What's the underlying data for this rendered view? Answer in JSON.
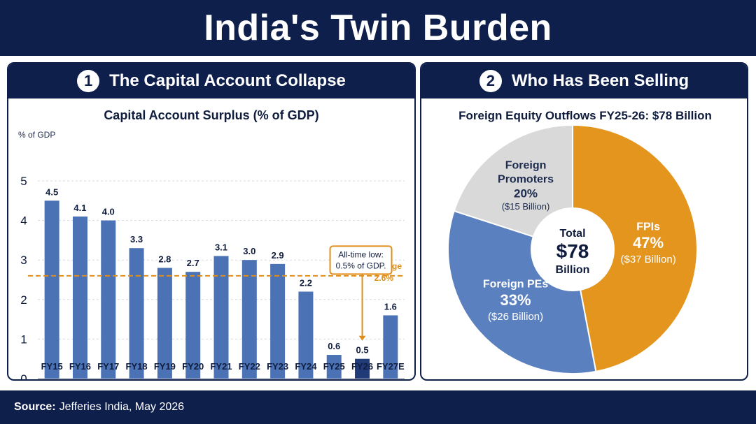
{
  "title": "India's Twin Burden",
  "colors": {
    "navy": "#0f1f4b",
    "bar": "#4a72b4",
    "bar_highlight": "#213a78",
    "average_line": "#e08e1a",
    "pie_fpi": "#e4951d",
    "pie_pe": "#5b80bf",
    "pie_promoters": "#d9d9d9"
  },
  "panels": {
    "left": {
      "number": "1",
      "title": "The Capital Account Collapse"
    },
    "right": {
      "number": "2",
      "title": "Who Has Been Selling"
    }
  },
  "footer": {
    "source_label": "Source:",
    "source_text": "Jefferies India, May 2026"
  },
  "chart_data": [
    {
      "type": "bar",
      "title": "Capital Account Surplus (% of GDP)",
      "ylabel": "% of GDP",
      "ylim": [
        0,
        5
      ],
      "yticks": [
        0,
        1,
        2,
        3,
        4,
        5
      ],
      "grid": true,
      "categories": [
        "FY15",
        "FY16",
        "FY17",
        "FY18",
        "FY19",
        "FY20",
        "FY21",
        "FY22",
        "FY23",
        "FY24",
        "FY25",
        "FY26",
        "FY27E"
      ],
      "values": [
        4.5,
        4.1,
        4.0,
        3.3,
        2.8,
        2.7,
        3.1,
        3.0,
        2.9,
        2.2,
        0.6,
        0.5,
        1.6
      ],
      "value_labels": [
        "4.5",
        "4.1",
        "4.0",
        "3.3",
        "2.8",
        "2.7",
        "3.1",
        "3.0",
        "2.9",
        "2.2",
        "0.6",
        "0.5",
        "1.6"
      ],
      "highlight_category": "FY26",
      "reference_line": {
        "value": 2.6,
        "label_line1": "10-year average",
        "label_line2": "2.6%"
      },
      "annotation": {
        "category": "FY26",
        "line1": "All-time low:",
        "line2": "0.5% of GDP."
      }
    },
    {
      "type": "pie",
      "title": "Foreign Equity Outflows FY25-26: $78 Billion",
      "center": {
        "line1": "Total",
        "line2": "$78",
        "line3": "Billion"
      },
      "slices": [
        {
          "name_lines": [
            "FPIs"
          ],
          "value": 47,
          "pct_label": "47%",
          "amount_label": "($37 Billion)",
          "color": "#e4951d",
          "text_color": "#ffffff"
        },
        {
          "name_lines": [
            "Foreign PEs"
          ],
          "value": 33,
          "pct_label": "33%",
          "amount_label": "($26 Billion)",
          "color": "#5b80bf",
          "text_color": "#ffffff"
        },
        {
          "name_lines": [
            "Foreign",
            "Promoters"
          ],
          "value": 20,
          "pct_label": "20%",
          "amount_label": "($15 Billion)",
          "color": "#d9d9d9",
          "text_color": "#1c2a4d"
        }
      ]
    }
  ]
}
